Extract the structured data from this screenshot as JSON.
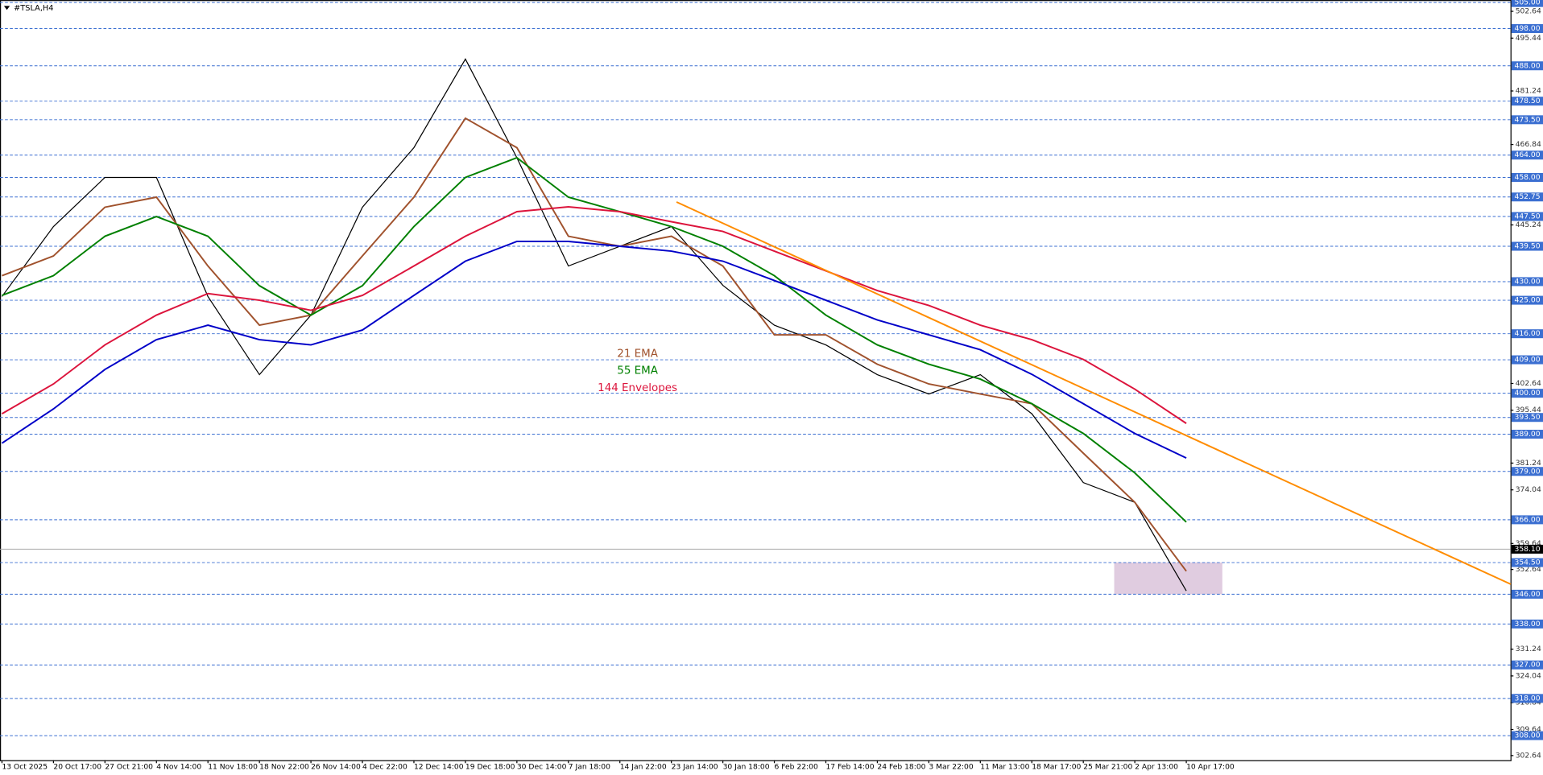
{
  "chart_data": {
    "type": "line",
    "title": "#TSLA,H4",
    "x": [
      "13 Oct 2025",
      "20 Oct 17:00",
      "27 Oct 21:00",
      "4 Nov 14:00",
      "11 Nov 18:00",
      "18 Nov 22:00",
      "26 Nov 14:00",
      "4 Dec 22:00",
      "12 Dec 14:00",
      "19 Dec 18:00",
      "30 Dec 14:00",
      "7 Jan 18:00",
      "14 Jan 22:00",
      "23 Jan 14:00",
      "30 Jan 18:00",
      "6 Feb 22:00",
      "17 Feb 14:00",
      "24 Feb 18:00",
      "3 Mar 22:00",
      "11 Mar 13:00",
      "18 Mar 17:00",
      "25 Mar 21:00",
      "2 Apr 13:00",
      "10 Apr 17:00"
    ],
    "price": {
      "color": "#000000",
      "values": [
        426,
        444.8,
        458,
        458,
        426,
        405,
        421,
        450,
        466,
        489.8,
        463.3,
        434.2,
        439.5,
        444.8,
        429,
        418.3,
        413,
        405,
        399.8,
        405,
        394.5,
        376,
        370.7,
        346.9
      ]
    },
    "series": [
      {
        "name": "21 EMA",
        "color": "#a0522d",
        "values": [
          431.6,
          436.9,
          450,
          452.7,
          434.2,
          418.3,
          421,
          436.9,
          452.7,
          473.9,
          466,
          442.2,
          439.5,
          442.2,
          434.2,
          415.7,
          415.7,
          407.8,
          402.5,
          399.8,
          397.2,
          383.9,
          370.7,
          352.2
        ]
      },
      {
        "name": "55 EMA",
        "color": "#008000",
        "values": [
          426.3,
          431.6,
          442.2,
          447.5,
          442.2,
          428.9,
          421,
          428.9,
          444.8,
          458,
          463.3,
          452.7,
          448.8,
          444.8,
          439.5,
          431.6,
          421,
          413,
          407.8,
          403.8,
          397.2,
          389.2,
          378.6,
          365.4
        ]
      },
      {
        "name": "144 Envelopes",
        "color": "#dc143c",
        "values": [
          394.5,
          402.5,
          413,
          421,
          426.8,
          425,
          422.3,
          426.3,
          434.2,
          442.2,
          448.8,
          450.1,
          448.8,
          446.1,
          443.5,
          438.2,
          432.9,
          427.6,
          423.6,
          418.3,
          414.4,
          409.1,
          401.1,
          391.9
        ]
      },
      {
        "color": "#0000c8",
        "values": [
          386.6,
          395.8,
          406.4,
          414.4,
          418.3,
          414.4,
          413,
          417,
          426.3,
          435.5,
          440.8,
          440.8,
          439.5,
          438.2,
          435.5,
          430.3,
          425,
          419.7,
          415.7,
          411.7,
          405.1,
          397.2,
          389.2,
          382.6
        ]
      }
    ],
    "trendline": {
      "color": "#ff8c00",
      "x": [
        13.1,
        29.3
      ],
      "values": [
        451.4,
        348.7
      ]
    },
    "zone": {
      "color": "#d8bfd8",
      "x": [
        21.6,
        23.7
      ],
      "values": [
        346,
        354.5
      ]
    },
    "ylim": [
      301.4,
      505.67
    ],
    "yticks": [
      502.64,
      495.44,
      481.24,
      466.84,
      445.24,
      402.64,
      395.44,
      381.24,
      374.04,
      359.64,
      352.64,
      331.24,
      324.04,
      316.84,
      309.64,
      302.64
    ],
    "levels": [
      {
        "value": 505,
        "label": "505.00"
      },
      {
        "value": 498,
        "label": "498.00"
      },
      {
        "value": 488,
        "label": "488.00"
      },
      {
        "value": 478.5,
        "label": "478.50"
      },
      {
        "value": 473.5,
        "label": "473.50"
      },
      {
        "value": 464,
        "label": "464.00"
      },
      {
        "value": 458,
        "label": "458.00"
      },
      {
        "value": 452.75,
        "label": "452.75"
      },
      {
        "value": 447.5,
        "label": "447.50"
      },
      {
        "value": 439.5,
        "label": "439.50"
      },
      {
        "value": 430,
        "label": "430.00"
      },
      {
        "value": 425,
        "label": "425.00"
      },
      {
        "value": 416,
        "label": "416.00"
      },
      {
        "value": 409,
        "label": "409.00"
      },
      {
        "value": 400,
        "label": "400.00"
      },
      {
        "value": 393.5,
        "label": "393.50"
      },
      {
        "value": 389,
        "label": "389.00"
      },
      {
        "value": 379,
        "label": "379.00"
      },
      {
        "value": 366,
        "label": "366.00"
      },
      {
        "value": 354.5,
        "label": "354.50"
      },
      {
        "value": 346,
        "label": "346.00"
      },
      {
        "value": 338,
        "label": "338.00"
      },
      {
        "value": 327,
        "label": "327.00"
      },
      {
        "value": 318,
        "label": "318.00"
      },
      {
        "value": 308,
        "label": "308.00"
      }
    ],
    "level_color": "#3b6fd1",
    "current_price": {
      "value": 358.1,
      "label": "358.10"
    }
  }
}
